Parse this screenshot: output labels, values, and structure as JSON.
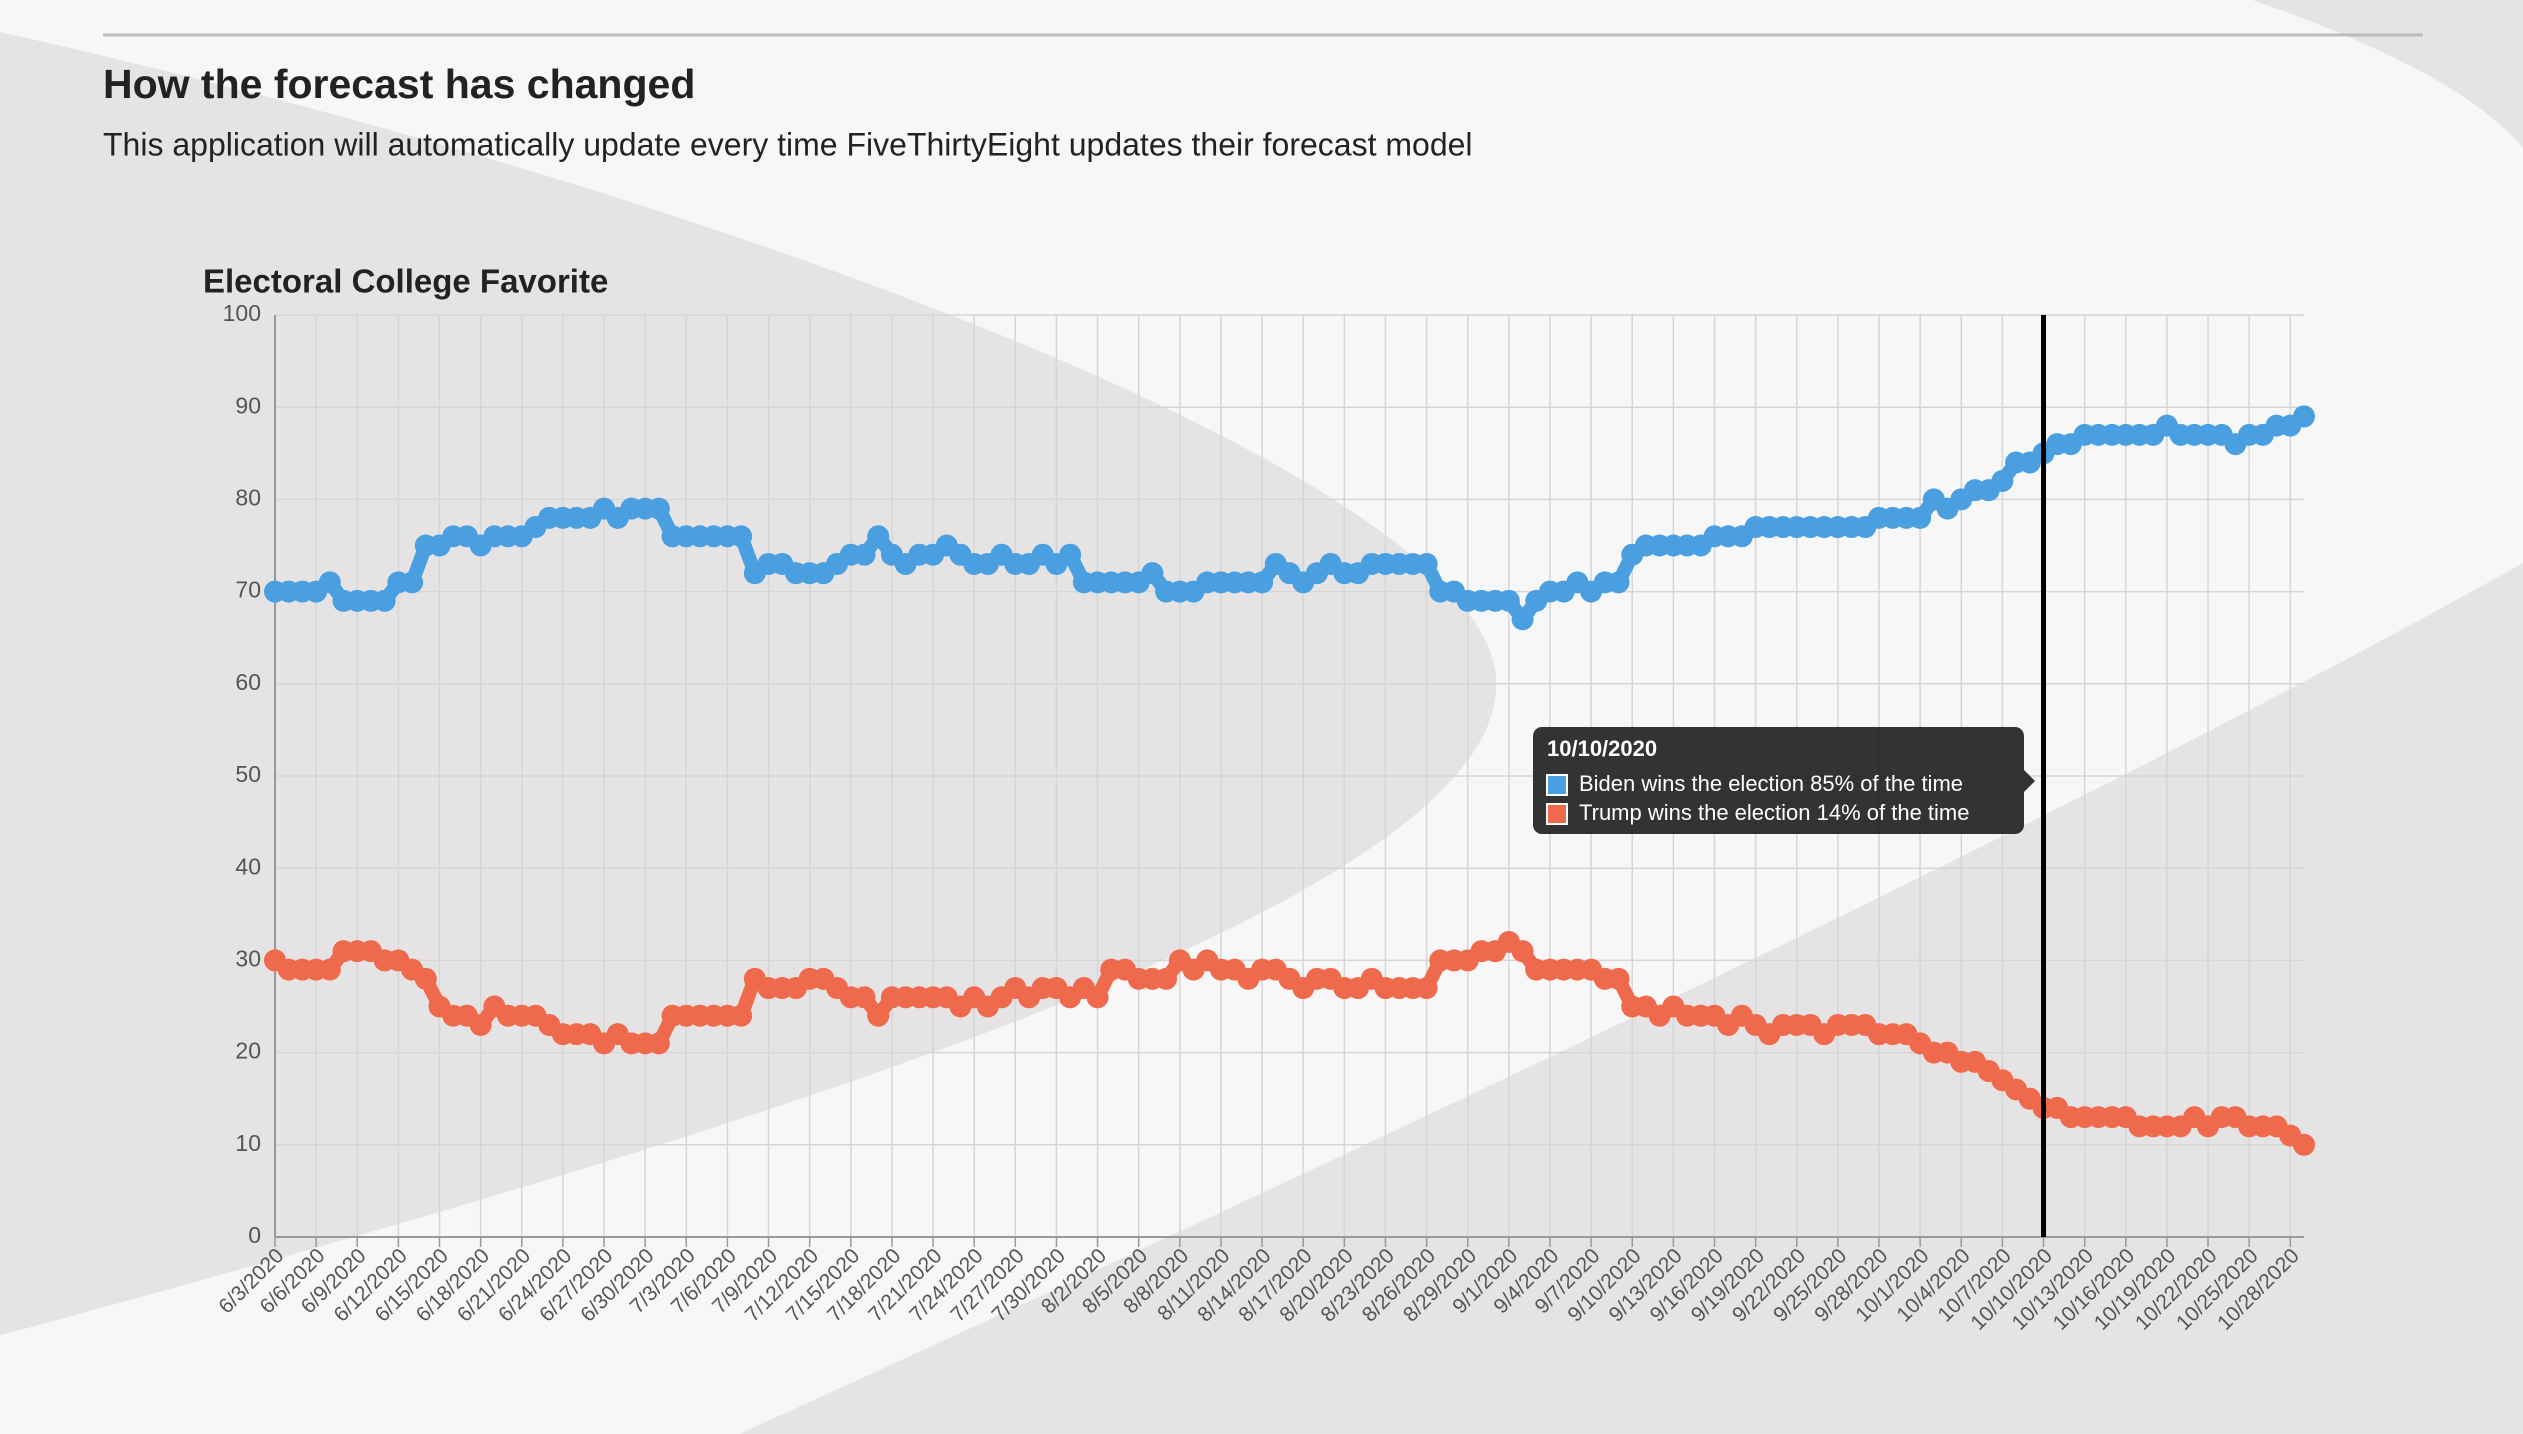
{
  "header": {
    "title": "How the forecast has changed",
    "subtitle": "This application will automatically update every time FiveThirtyEight updates their forecast model"
  },
  "chart_data": {
    "type": "line",
    "title": "Electoral College Favorite",
    "categories": [
      "6/3/2020",
      null,
      null,
      "6/6/2020",
      null,
      null,
      "6/9/2020",
      null,
      null,
      "6/12/2020",
      null,
      null,
      "6/15/2020",
      null,
      null,
      "6/18/2020",
      null,
      null,
      "6/21/2020",
      null,
      null,
      "6/24/2020",
      null,
      null,
      "6/27/2020",
      null,
      null,
      "6/30/2020",
      null,
      null,
      "7/3/2020",
      null,
      null,
      "7/6/2020",
      null,
      null,
      "7/9/2020",
      null,
      null,
      "7/12/2020",
      null,
      null,
      "7/15/2020",
      null,
      null,
      "7/18/2020",
      null,
      null,
      "7/21/2020",
      null,
      null,
      "7/24/2020",
      null,
      null,
      "7/27/2020",
      null,
      null,
      "7/30/2020",
      null,
      null,
      "8/2/2020",
      null,
      null,
      "8/5/2020",
      null,
      null,
      "8/8/2020",
      null,
      null,
      "8/11/2020",
      null,
      null,
      "8/14/2020",
      null,
      null,
      "8/17/2020",
      null,
      null,
      "8/20/2020",
      null,
      null,
      "8/23/2020",
      null,
      null,
      "8/26/2020",
      null,
      null,
      "8/29/2020",
      null,
      null,
      "9/1/2020",
      null,
      null,
      "9/4/2020",
      null,
      null,
      "9/7/2020",
      null,
      null,
      "9/10/2020",
      null,
      null,
      "9/13/2020",
      null,
      null,
      "9/16/2020",
      null,
      null,
      "9/19/2020",
      null,
      null,
      "9/22/2020",
      null,
      null,
      "9/25/2020",
      null,
      null,
      "9/28/2020",
      null,
      null,
      "10/1/2020",
      null,
      null,
      "10/4/2020",
      null,
      null,
      "10/7/2020",
      null,
      null,
      "10/10/2020",
      null,
      null,
      "10/13/2020",
      null,
      null,
      "10/16/2020",
      null,
      null,
      "10/19/2020",
      null,
      null,
      "10/22/2020",
      null,
      null,
      "10/25/2020",
      null,
      null,
      "10/28/2020",
      null
    ],
    "series": [
      {
        "color": "#4a9fe0",
        "values": [
          70,
          70,
          70,
          70,
          71,
          69,
          69,
          69,
          69,
          71,
          71,
          75,
          75,
          76,
          76,
          75,
          76,
          76,
          76,
          77,
          78,
          78,
          78,
          78,
          79,
          78,
          79,
          79,
          79,
          76,
          76,
          76,
          76,
          76,
          76,
          72,
          73,
          73,
          72,
          72,
          72,
          73,
          74,
          74,
          76,
          74,
          73,
          74,
          74,
          75,
          74,
          73,
          73,
          74,
          73,
          73,
          74,
          73,
          74,
          71,
          71,
          71,
          71,
          71,
          72,
          70,
          70,
          70,
          71,
          71,
          71,
          71,
          71,
          73,
          72,
          71,
          72,
          73,
          72,
          72,
          73,
          73,
          73,
          73,
          73,
          70,
          70,
          69,
          69,
          69,
          69,
          67,
          69,
          70,
          70,
          71,
          70,
          71,
          71,
          74,
          75,
          75,
          75,
          75,
          75,
          76,
          76,
          76,
          77,
          77,
          77,
          77,
          77,
          77,
          77,
          77,
          77,
          78,
          78,
          78,
          78,
          80,
          79,
          80,
          81,
          81,
          82,
          84,
          84,
          85,
          86,
          86,
          87,
          87,
          87,
          87,
          87,
          87,
          88,
          87,
          87,
          87,
          87,
          86,
          87,
          87,
          88,
          88,
          89
        ]
      },
      {
        "color": "#ef6a4c",
        "values": [
          30,
          29,
          29,
          29,
          29,
          31,
          31,
          31,
          30,
          30,
          29,
          28,
          25,
          24,
          24,
          23,
          25,
          24,
          24,
          24,
          23,
          22,
          22,
          22,
          21,
          22,
          21,
          21,
          21,
          24,
          24,
          24,
          24,
          24,
          24,
          28,
          27,
          27,
          27,
          28,
          28,
          27,
          26,
          26,
          24,
          26,
          26,
          26,
          26,
          26,
          25,
          26,
          25,
          26,
          27,
          26,
          27,
          27,
          26,
          27,
          26,
          29,
          29,
          28,
          28,
          28,
          30,
          29,
          30,
          29,
          29,
          28,
          29,
          29,
          28,
          27,
          28,
          28,
          27,
          27,
          28,
          27,
          27,
          27,
          27,
          30,
          30,
          30,
          31,
          31,
          32,
          31,
          29,
          29,
          29,
          29,
          29,
          28,
          28,
          25,
          25,
          24,
          25,
          24,
          24,
          24,
          23,
          24,
          23,
          22,
          23,
          23,
          23,
          22,
          23,
          23,
          23,
          22,
          22,
          22,
          21,
          20,
          20,
          19,
          19,
          18,
          17,
          16,
          15,
          14,
          14,
          13,
          13,
          13,
          13,
          13,
          12,
          12,
          12,
          12,
          13,
          12,
          13,
          13,
          12,
          12,
          12,
          11,
          10
        ]
      }
    ],
    "ylim": [
      0,
      100
    ],
    "yticks": [
      0,
      10,
      20,
      30,
      40,
      50,
      60,
      70,
      80,
      90,
      100
    ],
    "grid": true,
    "tooltip": {
      "title": "10/10/2020",
      "items": [
        "Biden wins the election 85% of the time",
        "Trump wins the election 14% of the time"
      ]
    }
  }
}
